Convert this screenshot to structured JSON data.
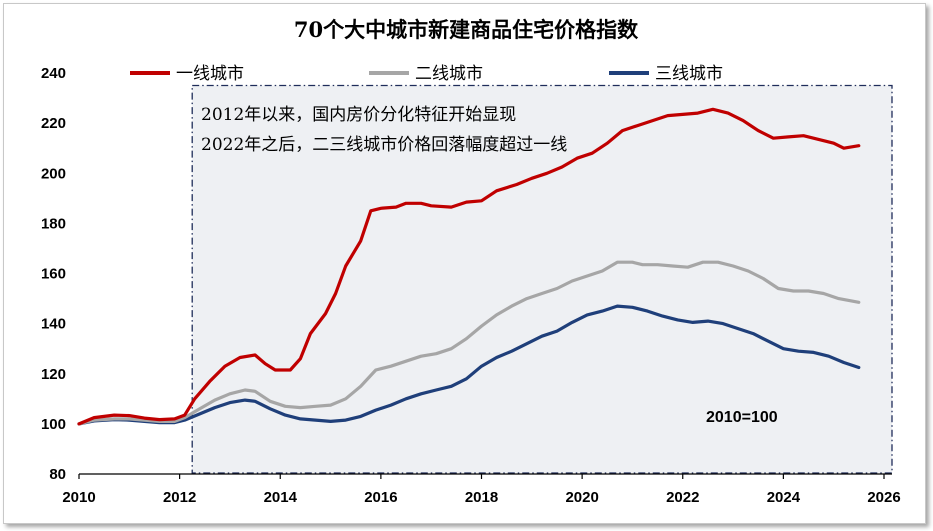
{
  "chart_data": {
    "type": "line",
    "title": "70个大中城市新建商品住宅价格指数",
    "xlabel": "",
    "ylabel": "",
    "xlim": [
      2010,
      2026
    ],
    "ylim": [
      80,
      240
    ],
    "xticks": [
      2010,
      2012,
      2014,
      2016,
      2018,
      2020,
      2022,
      2024,
      2026
    ],
    "yticks": [
      80,
      100,
      120,
      140,
      160,
      180,
      200,
      220,
      240
    ],
    "grid": false,
    "legend_position": "top",
    "shaded_region": {
      "x": [
        2012.25,
        2026
      ],
      "fill": "#eef0f3",
      "border": "#1f2d5a",
      "style": "dash-dot"
    },
    "annotations": [
      "2012年以来，国内房价分化特征开始显现",
      "2022年之后，二三线城市价格回落幅度超过一线",
      "2010=100"
    ],
    "series": [
      {
        "name": "一线城市",
        "color": "#c00000",
        "points": [
          [
            2010.0,
            100
          ],
          [
            2010.3,
            102.5
          ],
          [
            2010.7,
            103.5
          ],
          [
            2011.0,
            103.3
          ],
          [
            2011.3,
            102.3
          ],
          [
            2011.6,
            101.7
          ],
          [
            2011.9,
            102.0
          ],
          [
            2012.1,
            103.5
          ],
          [
            2012.3,
            110
          ],
          [
            2012.6,
            117
          ],
          [
            2012.9,
            123
          ],
          [
            2013.2,
            126.5
          ],
          [
            2013.5,
            127.5
          ],
          [
            2013.7,
            124
          ],
          [
            2013.9,
            121.5
          ],
          [
            2014.2,
            121.5
          ],
          [
            2014.4,
            126
          ],
          [
            2014.6,
            136
          ],
          [
            2014.9,
            144
          ],
          [
            2015.1,
            152
          ],
          [
            2015.3,
            163
          ],
          [
            2015.6,
            173
          ],
          [
            2015.8,
            185
          ],
          [
            2016.0,
            186
          ],
          [
            2016.3,
            186.5
          ],
          [
            2016.5,
            188
          ],
          [
            2016.8,
            188
          ],
          [
            2017.0,
            187
          ],
          [
            2017.4,
            186.5
          ],
          [
            2017.7,
            188.5
          ],
          [
            2018.0,
            189
          ],
          [
            2018.3,
            193
          ],
          [
            2018.7,
            195.5
          ],
          [
            2019.0,
            198
          ],
          [
            2019.3,
            200
          ],
          [
            2019.6,
            202.5
          ],
          [
            2019.9,
            206
          ],
          [
            2020.2,
            208
          ],
          [
            2020.5,
            212
          ],
          [
            2020.8,
            217
          ],
          [
            2021.1,
            219
          ],
          [
            2021.4,
            221
          ],
          [
            2021.7,
            223
          ],
          [
            2022.0,
            223.5
          ],
          [
            2022.3,
            224
          ],
          [
            2022.6,
            225.5
          ],
          [
            2022.9,
            224
          ],
          [
            2023.2,
            221
          ],
          [
            2023.5,
            217
          ],
          [
            2023.8,
            214
          ],
          [
            2024.1,
            214.5
          ],
          [
            2024.4,
            215
          ],
          [
            2024.7,
            213.5
          ],
          [
            2025.0,
            212
          ],
          [
            2025.2,
            210
          ],
          [
            2025.5,
            211
          ]
        ]
      },
      {
        "name": "二线城市",
        "color": "#a6a6a6",
        "points": [
          [
            2010.0,
            100
          ],
          [
            2010.3,
            101.5
          ],
          [
            2010.7,
            102
          ],
          [
            2011.0,
            102
          ],
          [
            2011.3,
            101.5
          ],
          [
            2011.6,
            101
          ],
          [
            2011.9,
            101
          ],
          [
            2012.1,
            102.5
          ],
          [
            2012.4,
            106
          ],
          [
            2012.7,
            109.5
          ],
          [
            2013.0,
            112
          ],
          [
            2013.3,
            113.5
          ],
          [
            2013.5,
            113
          ],
          [
            2013.8,
            109
          ],
          [
            2014.1,
            107
          ],
          [
            2014.4,
            106.5
          ],
          [
            2014.7,
            107
          ],
          [
            2015.0,
            107.5
          ],
          [
            2015.3,
            110
          ],
          [
            2015.6,
            115
          ],
          [
            2015.9,
            121.5
          ],
          [
            2016.2,
            123
          ],
          [
            2016.5,
            125
          ],
          [
            2016.8,
            127
          ],
          [
            2017.1,
            128
          ],
          [
            2017.4,
            130
          ],
          [
            2017.7,
            134
          ],
          [
            2018.0,
            139
          ],
          [
            2018.3,
            143.5
          ],
          [
            2018.6,
            147
          ],
          [
            2018.9,
            150
          ],
          [
            2019.2,
            152
          ],
          [
            2019.5,
            154
          ],
          [
            2019.8,
            157
          ],
          [
            2020.1,
            159
          ],
          [
            2020.4,
            161
          ],
          [
            2020.7,
            164.5
          ],
          [
            2021.0,
            164.5
          ],
          [
            2021.2,
            163.5
          ],
          [
            2021.5,
            163.5
          ],
          [
            2021.8,
            163
          ],
          [
            2022.1,
            162.5
          ],
          [
            2022.4,
            164.5
          ],
          [
            2022.7,
            164.5
          ],
          [
            2023.0,
            163
          ],
          [
            2023.3,
            161
          ],
          [
            2023.6,
            158
          ],
          [
            2023.9,
            154
          ],
          [
            2024.2,
            153
          ],
          [
            2024.5,
            153
          ],
          [
            2024.8,
            152
          ],
          [
            2025.1,
            150
          ],
          [
            2025.5,
            148.5
          ]
        ]
      },
      {
        "name": "三线城市",
        "color": "#1f3f7a",
        "points": [
          [
            2010.0,
            100
          ],
          [
            2010.3,
            101.2
          ],
          [
            2010.7,
            101.7
          ],
          [
            2011.0,
            101.5
          ],
          [
            2011.3,
            101
          ],
          [
            2011.6,
            100.5
          ],
          [
            2011.9,
            100.5
          ],
          [
            2012.1,
            101.5
          ],
          [
            2012.4,
            104
          ],
          [
            2012.7,
            106.5
          ],
          [
            2013.0,
            108.5
          ],
          [
            2013.3,
            109.5
          ],
          [
            2013.5,
            109
          ],
          [
            2013.8,
            106
          ],
          [
            2014.1,
            103.5
          ],
          [
            2014.4,
            102
          ],
          [
            2014.7,
            101.5
          ],
          [
            2015.0,
            101
          ],
          [
            2015.3,
            101.5
          ],
          [
            2015.6,
            103
          ],
          [
            2015.9,
            105.5
          ],
          [
            2016.2,
            107.5
          ],
          [
            2016.5,
            110
          ],
          [
            2016.8,
            112
          ],
          [
            2017.1,
            113.5
          ],
          [
            2017.4,
            115
          ],
          [
            2017.7,
            118
          ],
          [
            2018.0,
            123
          ],
          [
            2018.3,
            126.5
          ],
          [
            2018.6,
            129
          ],
          [
            2018.9,
            132
          ],
          [
            2019.2,
            135
          ],
          [
            2019.5,
            137
          ],
          [
            2019.8,
            140.5
          ],
          [
            2020.1,
            143.5
          ],
          [
            2020.4,
            145
          ],
          [
            2020.7,
            147
          ],
          [
            2021.0,
            146.5
          ],
          [
            2021.3,
            145
          ],
          [
            2021.6,
            143
          ],
          [
            2021.9,
            141.5
          ],
          [
            2022.2,
            140.5
          ],
          [
            2022.5,
            141
          ],
          [
            2022.8,
            140
          ],
          [
            2023.1,
            138
          ],
          [
            2023.4,
            136
          ],
          [
            2023.7,
            133
          ],
          [
            2024.0,
            130
          ],
          [
            2024.3,
            129
          ],
          [
            2024.6,
            128.5
          ],
          [
            2024.9,
            127
          ],
          [
            2025.2,
            124.5
          ],
          [
            2025.5,
            122.5
          ]
        ]
      }
    ]
  }
}
